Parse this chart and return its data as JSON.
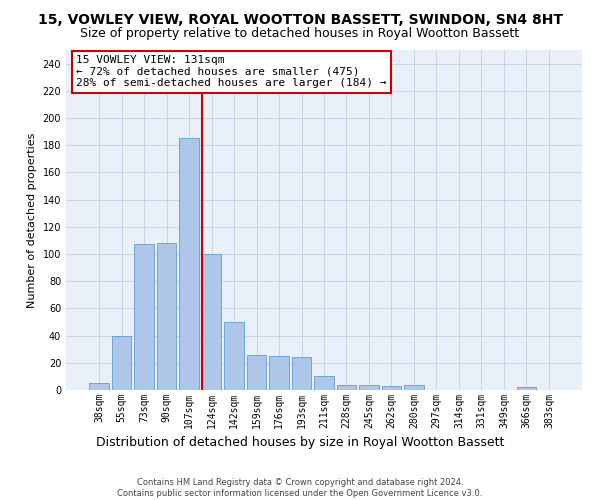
{
  "title": "15, VOWLEY VIEW, ROYAL WOOTTON BASSETT, SWINDON, SN4 8HT",
  "subtitle": "Size of property relative to detached houses in Royal Wootton Bassett",
  "xlabel": "Distribution of detached houses by size in Royal Wootton Bassett",
  "ylabel": "Number of detached properties",
  "footer_line1": "Contains HM Land Registry data © Crown copyright and database right 2024.",
  "footer_line2": "Contains public sector information licensed under the Open Government Licence v3.0.",
  "categories": [
    "38sqm",
    "55sqm",
    "73sqm",
    "90sqm",
    "107sqm",
    "124sqm",
    "142sqm",
    "159sqm",
    "176sqm",
    "193sqm",
    "211sqm",
    "228sqm",
    "245sqm",
    "262sqm",
    "280sqm",
    "297sqm",
    "314sqm",
    "331sqm",
    "349sqm",
    "366sqm",
    "383sqm"
  ],
  "values": [
    5,
    40,
    107,
    108,
    185,
    100,
    50,
    26,
    25,
    24,
    10,
    4,
    4,
    3,
    4,
    0,
    0,
    0,
    0,
    2,
    0
  ],
  "bar_color": "#aec6e8",
  "bar_edge_color": "#5a9fd4",
  "grid_color": "#c8d4e8",
  "background_color": "#eaf0f8",
  "annotation_box_text": "15 VOWLEY VIEW: 131sqm\n← 72% of detached houses are smaller (475)\n28% of semi-detached houses are larger (184) →",
  "vline_x_index": 5,
  "vline_color": "#cc0000",
  "ylim": [
    0,
    250
  ],
  "yticks": [
    0,
    20,
    40,
    60,
    80,
    100,
    120,
    140,
    160,
    180,
    200,
    220,
    240
  ],
  "title_fontsize": 10,
  "subtitle_fontsize": 9,
  "xlabel_fontsize": 9,
  "ylabel_fontsize": 8,
  "tick_fontsize": 7,
  "annotation_fontsize": 8,
  "footer_fontsize": 6
}
